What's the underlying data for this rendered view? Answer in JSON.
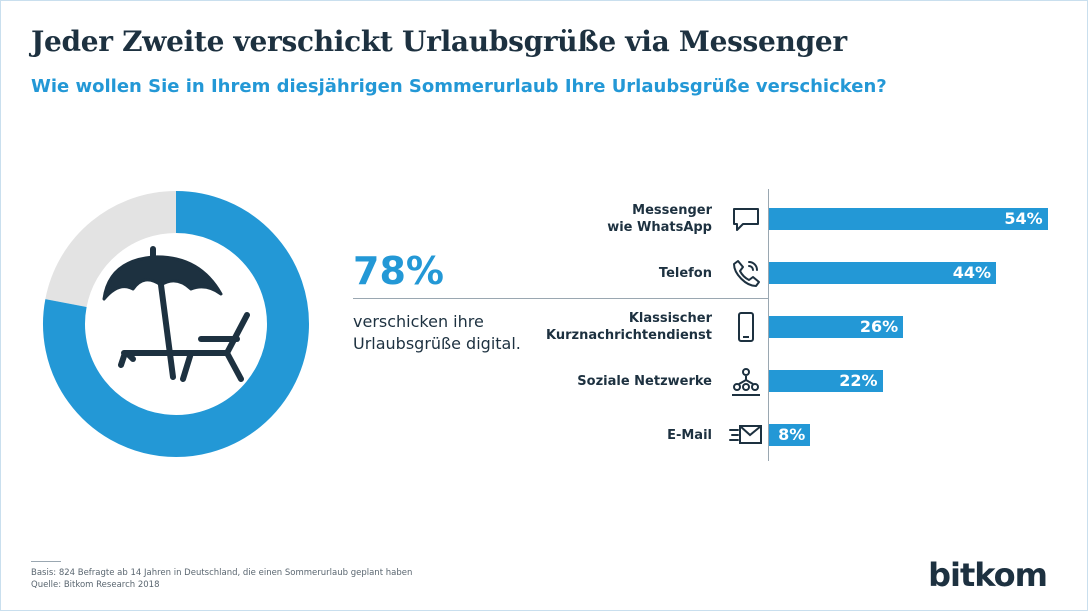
{
  "title": "Jeder Zweite verschickt Urlaubsgrüße via Messenger",
  "subtitle": "Wie wollen Sie in Ihrem diesjährigen Sommerurlaub Ihre Urlaubsgrüße verschicken?",
  "highlight": {
    "value_label": "78%",
    "text": "verschicken ihre Urlaubsgrüße digital."
  },
  "footnote": {
    "basis": "Basis: 824 Befragte ab 14 Jahren in Deutschland, die einen Sommerurlaub geplant haben",
    "source": "Quelle: Bitkom Research 2018"
  },
  "logo": "bitkom",
  "colors": {
    "accent": "#2398d6",
    "donut_rest": "#e3e3e3",
    "text_dark": "#1d3140"
  },
  "chart_data": [
    {
      "type": "pie",
      "title": "",
      "values": [
        78,
        22
      ],
      "labels": [
        "78%",
        ""
      ],
      "icon": "beach-umbrella-lounger-icon"
    },
    {
      "type": "bar",
      "orientation": "horizontal",
      "categories": [
        [
          "Messenger",
          "wie WhatsApp"
        ],
        [
          "Telefon"
        ],
        [
          "Klassischer",
          "Kurznachrichtendienst"
        ],
        [
          "Soziale Netzwerke"
        ],
        [
          "E-Mail"
        ]
      ],
      "values": [
        54,
        44,
        26,
        22,
        8
      ],
      "value_labels": [
        "54%",
        "44%",
        "26%",
        "22%",
        "8%"
      ],
      "icons": [
        "chat-bubble-icon",
        "phone-icon",
        "mobile-phone-icon",
        "social-network-icon",
        "email-icon"
      ],
      "xlim": [
        0,
        100
      ],
      "grid": false
    }
  ]
}
